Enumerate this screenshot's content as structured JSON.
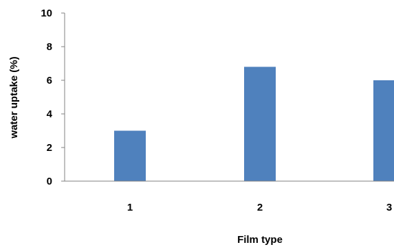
{
  "chart_data": {
    "type": "bar",
    "categories": [
      "1",
      "2",
      "3"
    ],
    "values": [
      3.0,
      6.8,
      6.0
    ],
    "xlabel": "Film type",
    "ylabel": "water uptake (%)",
    "ylim": [
      0,
      10
    ],
    "yticks": [
      "0",
      "2",
      "4",
      "6",
      "8",
      "10"
    ],
    "grid": false,
    "legend": "none",
    "bar_color": "#4f81bd",
    "axis_color": "#808080"
  }
}
